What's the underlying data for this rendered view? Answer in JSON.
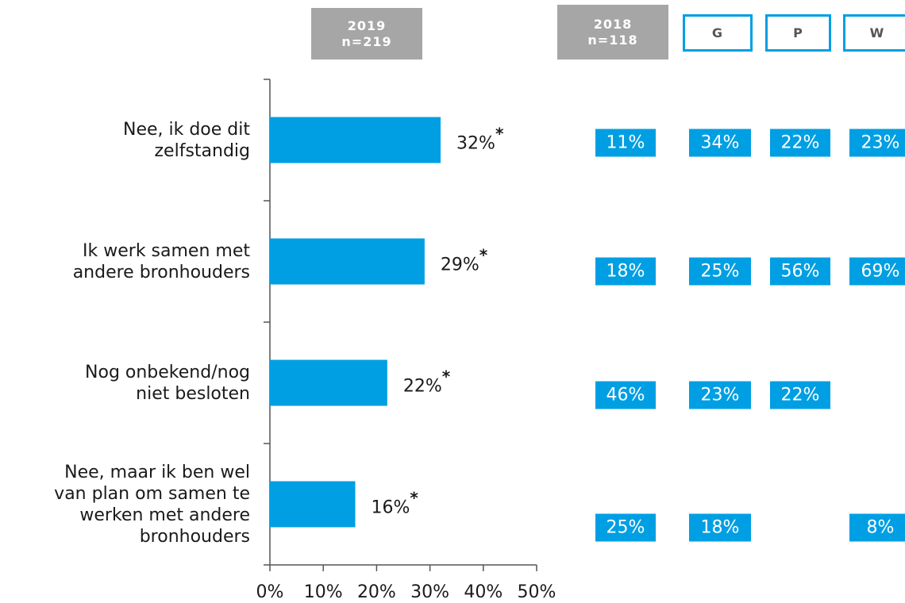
{
  "chart_data": {
    "type": "hbar",
    "header": "2019\nn=219",
    "categories": [
      "Nee, ik doe dit\nzelfstandig",
      "Ik werk samen met\nandere bronhouders",
      "Nog onbekend/nog\nniet besloten",
      "Nee, maar ik ben wel\nvan plan om samen te\nwerken met andere\nbronhouders"
    ],
    "values": [
      32,
      29,
      22,
      16
    ],
    "value_labels": [
      "32%",
      "29%",
      "22%",
      "16%"
    ],
    "value_notes": [
      "*",
      "*",
      "*",
      "*"
    ],
    "color": "#009fe3",
    "xlim": [
      0,
      50
    ],
    "xticks": [
      {
        "value": 0,
        "label": "0%"
      },
      {
        "value": 10,
        "label": "10%"
      },
      {
        "value": 20,
        "label": "20%"
      },
      {
        "value": 30,
        "label": "30%"
      },
      {
        "value": 40,
        "label": "40%"
      },
      {
        "value": 50,
        "label": "50%"
      }
    ],
    "comparison": [
      {
        "header": "2018\nn=118",
        "style": "filled",
        "values": [
          11,
          18,
          46,
          25
        ],
        "value_labels": [
          "11%",
          "18%",
          "46%",
          "25%"
        ]
      },
      {
        "header": "G",
        "style": "outline",
        "values": [
          34,
          25,
          23,
          18
        ],
        "value_labels": [
          "34%",
          "25%",
          "23%",
          "18%"
        ]
      },
      {
        "header": "P",
        "style": "outline",
        "values": [
          22,
          56,
          22,
          null
        ],
        "value_labels": [
          "22%",
          "56%",
          "22%",
          null
        ]
      },
      {
        "header": "W",
        "style": "outline",
        "values": [
          23,
          69,
          null,
          8
        ],
        "value_labels": [
          "23%",
          "69%",
          null,
          "8%"
        ]
      }
    ]
  }
}
